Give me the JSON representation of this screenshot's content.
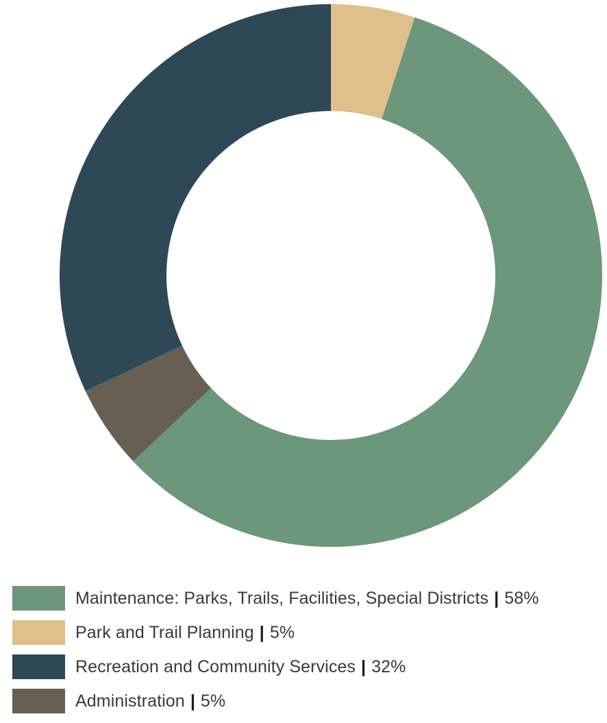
{
  "chart_data": {
    "type": "pie",
    "categories": [
      "Maintenance: Parks, Trails, Facilities, Special Districts",
      "Park and Trail Planning",
      "Recreation and Community Services",
      "Administration"
    ],
    "values": [
      58,
      5,
      32,
      5
    ],
    "value_labels": [
      "58%",
      "5%",
      "32%",
      "5%"
    ],
    "colors": [
      "#6d977a",
      "#dfc08a",
      "#2f4858",
      "#676052"
    ],
    "separator": "|",
    "legend_position": "bottom-left",
    "slice_order_clockwise_from_top": [
      "Park and Trail Planning",
      "Maintenance: Parks, Trails, Facilities, Special Districts",
      "Administration",
      "Recreation and Community Services"
    ]
  }
}
